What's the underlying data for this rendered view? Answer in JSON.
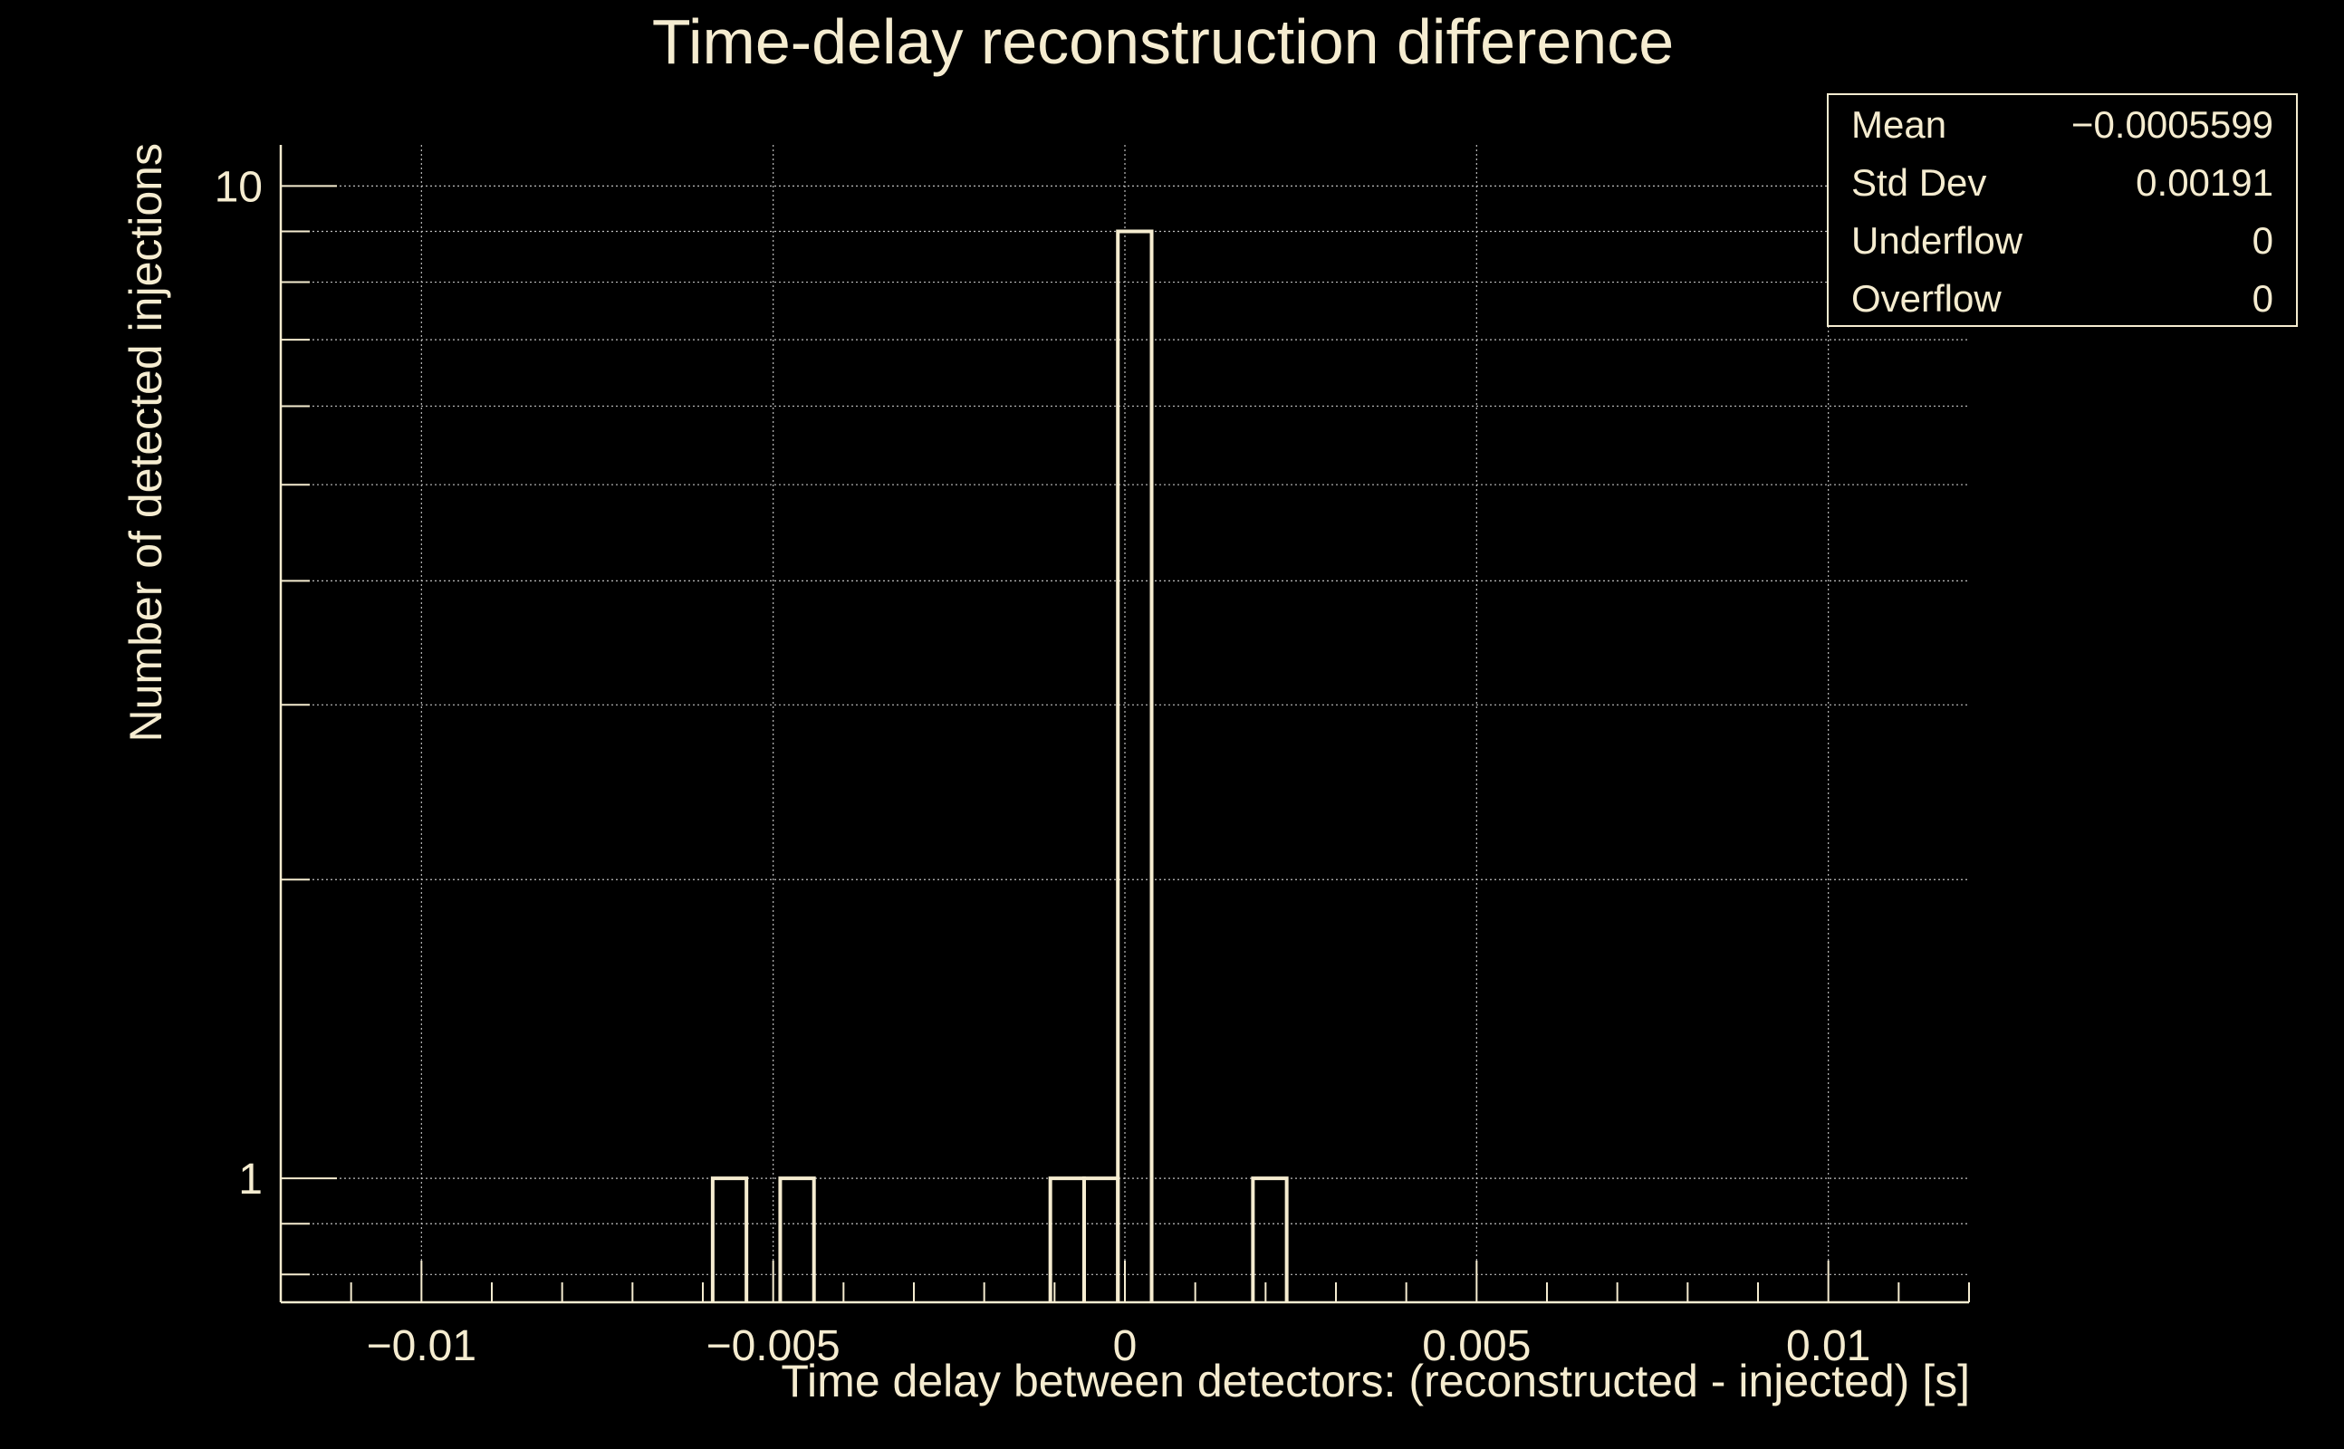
{
  "chart_data": {
    "type": "bar",
    "title": "Time-delay reconstruction difference",
    "xlabel": "Time delay between detectors: (reconstructed - injected) [s]",
    "ylabel": "Number of detected injections",
    "xlim": [
      -0.012,
      0.012
    ],
    "ylim": [
      0.75,
      11
    ],
    "yscale": "log",
    "grid": true,
    "legend": "none",
    "x_ticks": [
      {
        "value": -0.01,
        "label": "−0.01"
      },
      {
        "value": -0.005,
        "label": "−0.005"
      },
      {
        "value": 0,
        "label": "0"
      },
      {
        "value": 0.005,
        "label": "0.005"
      },
      {
        "value": 0.01,
        "label": "0.01"
      }
    ],
    "y_ticks": [
      {
        "value": 1,
        "label": "1"
      },
      {
        "value": 10,
        "label": "10"
      }
    ],
    "bin_width": 0.00048,
    "bins": [
      {
        "x": -0.00562,
        "count": 1
      },
      {
        "x": -0.00466,
        "count": 1
      },
      {
        "x": -0.00082,
        "count": 1
      },
      {
        "x": -0.00034,
        "count": 1
      },
      {
        "x": 0.00014,
        "count": 9
      },
      {
        "x": 0.00206,
        "count": 1
      }
    ],
    "stats": [
      {
        "label": "Mean",
        "value": "−0.0005599"
      },
      {
        "label": "Std Dev",
        "value": "0.00191"
      },
      {
        "label": "Underflow",
        "value": "0"
      },
      {
        "label": "Overflow",
        "value": "0"
      }
    ]
  },
  "colors": {
    "background": "#000000",
    "foreground": "#f5ecd0",
    "grid": "#bdbdbd"
  }
}
